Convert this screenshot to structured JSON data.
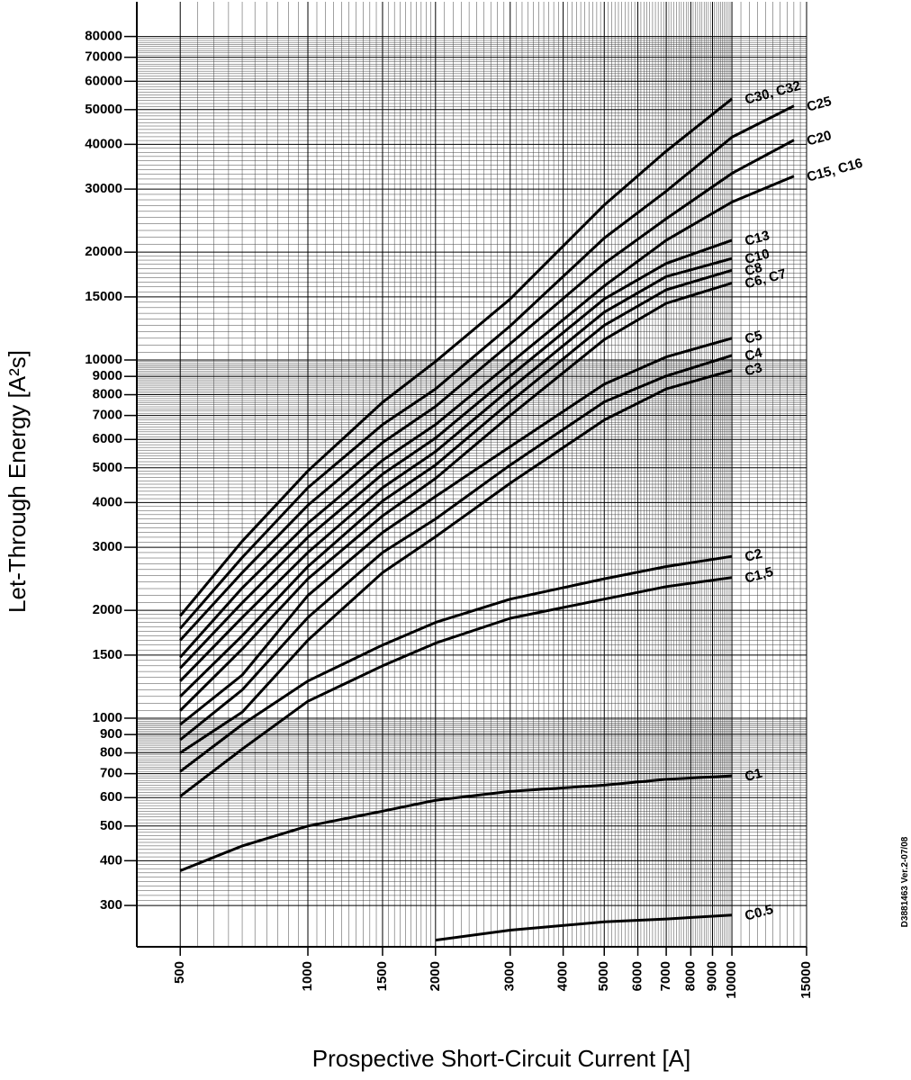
{
  "chart_data": {
    "type": "line",
    "x_label": "Prospective Short-Circuit Current [A]",
    "y_label": "Let-Through Energy [A²s]",
    "note": "D3881463 Ver.2-07/08",
    "log_x": true,
    "log_y": true,
    "grid": true,
    "line_color": "#000000",
    "x": [
      500,
      700,
      1000,
      1500,
      2000,
      3000,
      5000,
      7000,
      10000,
      14000
    ],
    "series": [
      {
        "name": "C30, C32",
        "values": [
          1930,
          3120,
          4900,
          7620,
          9900,
          14800,
          27100,
          38300,
          53600,
          null
        ]
      },
      {
        "name": "C25",
        "values": [
          1780,
          2810,
          4400,
          6600,
          8300,
          12450,
          21900,
          29600,
          41900,
          51200
        ]
      },
      {
        "name": "C20",
        "values": [
          1650,
          2550,
          3930,
          5880,
          7420,
          11100,
          18600,
          24800,
          33200,
          41100
        ]
      },
      {
        "name": "C15, C16",
        "values": [
          1480,
          2310,
          3500,
          5250,
          6600,
          9800,
          16100,
          21600,
          27600,
          32600
        ]
      },
      {
        "name": "C13",
        "values": [
          1380,
          2100,
          3200,
          4800,
          6050,
          9020,
          14800,
          18600,
          21600,
          null
        ]
      },
      {
        "name": "C10",
        "values": [
          1270,
          1910,
          2900,
          4400,
          5550,
          8300,
          13600,
          17100,
          19200,
          null
        ]
      },
      {
        "name": "C8",
        "values": [
          1150,
          1700,
          2650,
          4040,
          5090,
          7640,
          12500,
          15700,
          17800,
          null
        ]
      },
      {
        "name": "C6, C7",
        "values": [
          1050,
          1560,
          2450,
          3670,
          4670,
          7000,
          11400,
          14400,
          16400,
          null
        ]
      },
      {
        "name": "C5",
        "values": [
          960,
          1320,
          2200,
          3300,
          4160,
          5730,
          8560,
          10200,
          11500,
          null
        ]
      },
      {
        "name": "C4",
        "values": [
          870,
          1200,
          1910,
          2900,
          3600,
          5090,
          7640,
          9020,
          10300,
          null
        ]
      },
      {
        "name": "C3",
        "values": [
          800,
          1040,
          1650,
          2550,
          3210,
          4530,
          6800,
          8300,
          9350,
          null
        ]
      },
      {
        "name": "C2",
        "values": [
          710,
          960,
          1270,
          1600,
          1850,
          2150,
          2450,
          2650,
          2830,
          null
        ]
      },
      {
        "name": "C1,5",
        "values": [
          605,
          820,
          1115,
          1400,
          1620,
          1900,
          2150,
          2330,
          2470,
          null
        ]
      },
      {
        "name": "C1",
        "values": [
          375,
          440,
          500,
          550,
          590,
          625,
          650,
          675,
          690,
          null
        ]
      },
      {
        "name": "C0.5",
        "values": [
          null,
          null,
          null,
          null,
          240,
          256,
          270,
          275,
          282,
          null
        ]
      }
    ],
    "xlim": [
      395,
      15000
    ],
    "ylim": [
      230,
      100000
    ],
    "xticks": [
      500,
      1000,
      1500,
      2000,
      3000,
      4000,
      5000,
      6000,
      7000,
      8000,
      9000,
      10000,
      15000
    ],
    "yticks": [
      300,
      400,
      500,
      600,
      700,
      800,
      900,
      1000,
      1500,
      2000,
      3000,
      4000,
      5000,
      6000,
      7000,
      8000,
      9000,
      10000,
      15000,
      20000,
      30000,
      40000,
      50000,
      60000,
      70000,
      80000
    ]
  }
}
